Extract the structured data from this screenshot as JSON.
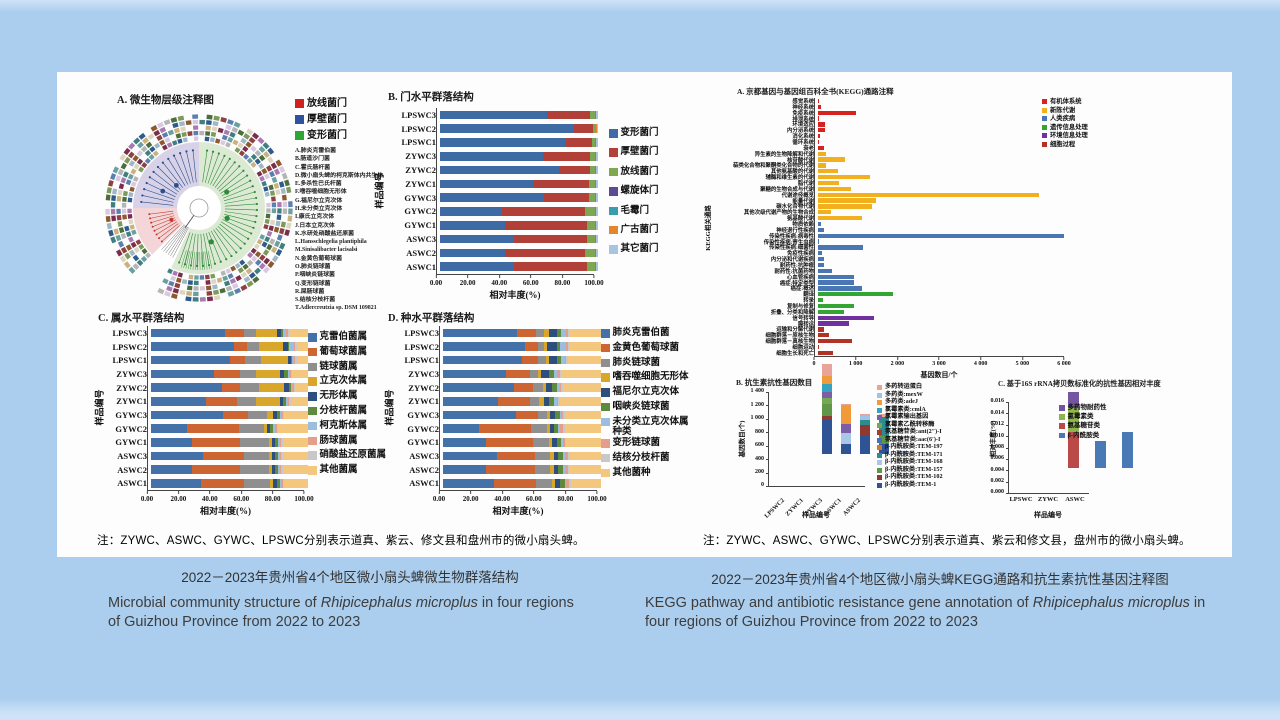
{
  "left_figure": {
    "panel_a": {
      "title": "A. 微生物层级注释图",
      "legend": [
        {
          "label": "放线菌门",
          "color": "#d02020"
        },
        {
          "label": "厚壁菌门",
          "color": "#2f52a0"
        },
        {
          "label": "变形菌门",
          "color": "#2fa538"
        }
      ],
      "species_list": [
        "A.肺炎克雷伯菌",
        "B.肠道沙门菌",
        "C.霍氏肠杆菌",
        "D.微小扇头蜱的柯克斯体内共生体",
        "E.多杀性巴氏杆菌",
        "F.嗜吞噬细胞无形体",
        "G.福尼尔立克次体",
        "H.未分类立克次体",
        "I.康氏立克次体",
        "J.日本立克次体",
        "K.水研处硝酸盐还原菌",
        "L.Hansschlegelia plantiphila",
        "M.Sinisalibacter lacisalsi",
        "N.金黄色葡萄球菌",
        "O.肺炎链球菌",
        "P.咽峡炎链球菌",
        "Q.变形链球菌",
        "R.屎肠球菌",
        "S.结核分枝杆菌",
        "T.Adlercreutzia sp. DSM 109821"
      ],
      "ring_palette": [
        "#3f7f7f",
        "#7a2e4e",
        "#c9b27b",
        "#5b7fae",
        "#7d9a5a",
        "#b5b5b5",
        "#8c5a2e",
        "#2e5a8c",
        "#a87ab0",
        "#dcd6c0",
        "#6aa0a0",
        "#8f4040",
        "#4a6f3a",
        "#d9c9e0",
        "#9fb8c8"
      ],
      "sector_colors": {
        "proteo": "#dcead3",
        "firmi": "#d8d2e8",
        "actino": "#f4d6d8"
      }
    },
    "note": "注：ZYWC、ASWC、GYWC、LPSWC分别表示道真、紫云、修文县和盘州市的微小扇头蜱。",
    "caption_zh": "2022－2023年贵州省4个地区微小扇头蜱微生物群落结构",
    "caption_en": {
      "prefix": "Microbial community structure of ",
      "italic": "Rhipicephalus microplus",
      "suffix": " in four regions of Guizhou Province from 2022 to 2023"
    }
  },
  "right_figure": {
    "note": "注：ZYWC、ASWC、GYWC、LPSWC分别表示道真、紫云和修文县，盘州市的微小扇头蜱。",
    "caption_zh": "2022－2023年贵州省4个地区微小扇头蜱KEGG通路和抗生素抗性基因注释图",
    "caption_en": {
      "prefix": "KEGG pathway and antibiotic resistance gene annotation of ",
      "italic": "Rhipicephalus microplus",
      "suffix": " in four regions of Guizhou Province from 2022 to 2023"
    }
  },
  "chart_data": [
    {
      "id": "phylum",
      "type": "bar",
      "orientation": "horizontal",
      "stacked": true,
      "title": "B. 门水平群落结构",
      "ylabel": "样品编号",
      "xlabel": "相对丰度(%)",
      "xlim": [
        0,
        100
      ],
      "xticks": [
        "0.00",
        "20.00",
        "40.00",
        "60.00",
        "80.00",
        "100.00"
      ],
      "categories": [
        "LPSWC3",
        "LPSWC2",
        "LPSWC1",
        "ZYWC3",
        "ZYWC2",
        "ZYWC1",
        "GYWC3",
        "GYWC2",
        "GYWC1",
        "ASWC3",
        "ASWC2",
        "ASWC1"
      ],
      "series": [
        {
          "name": "变形菌门",
          "color": "#3f6ba5",
          "values": [
            68,
            85,
            80,
            65,
            75,
            59,
            66,
            39,
            41,
            47,
            41,
            47
          ]
        },
        {
          "name": "厚壁菌门",
          "color": "#b04038",
          "values": [
            27,
            12,
            16,
            30,
            20,
            35,
            28,
            53,
            52,
            46,
            51,
            46
          ]
        },
        {
          "name": "放线菌门",
          "color": "#7fa651",
          "values": [
            3,
            1.5,
            2,
            3,
            3,
            4,
            4,
            6,
            5,
            5,
            6,
            5
          ]
        },
        {
          "name": "螺旋体门",
          "color": "#5c4a92",
          "values": [
            0.4,
            0.3,
            0.4,
            0.4,
            0.4,
            0.4,
            0.4,
            0.4,
            0.4,
            0.4,
            0.4,
            0.4
          ]
        },
        {
          "name": "毛霉门",
          "color": "#3a9daf",
          "values": [
            0.3,
            0.2,
            0.3,
            0.3,
            0.3,
            0.3,
            0.3,
            0.3,
            0.3,
            0.3,
            0.3,
            0.3
          ]
        },
        {
          "name": "广古菌门",
          "color": "#e1872f",
          "values": [
            0.3,
            0.2,
            0.3,
            0.3,
            0.3,
            0.3,
            0.3,
            0.3,
            0.3,
            0.3,
            0.3,
            0.3
          ]
        },
        {
          "name": "其它菌门",
          "color": "#a9c3e2",
          "values": [
            1,
            0.8,
            1,
            1,
            1,
            1,
            1,
            1,
            1,
            1,
            1,
            1
          ]
        }
      ]
    },
    {
      "id": "genus",
      "type": "bar",
      "orientation": "horizontal",
      "stacked": true,
      "title": "C. 属水平群落结构",
      "ylabel": "样品编号",
      "xlabel": "相对丰度(%)",
      "xlim": [
        0,
        100
      ],
      "xticks": [
        "0.00",
        "20.00",
        "40.00",
        "60.00",
        "80.00",
        "100.00"
      ],
      "categories": [
        "LPSWC3",
        "LPSWC2",
        "LPSWC1",
        "ZYWC3",
        "ZYWC2",
        "ZYWC1",
        "GYWC3",
        "GYWC2",
        "GYWC1",
        "ASWC3",
        "ASWC2",
        "ASWC1"
      ],
      "series": [
        {
          "name": "克雷伯菌属",
          "color": "#4472a8",
          "values": [
            47,
            53,
            50,
            40,
            45,
            35,
            46,
            23,
            26,
            33,
            26,
            32
          ]
        },
        {
          "name": "葡萄球菌属",
          "color": "#cc6532",
          "values": [
            12,
            8,
            10,
            17,
            12,
            20,
            16,
            33,
            31,
            26,
            31,
            27
          ]
        },
        {
          "name": "链球菌属",
          "color": "#8f8f8f",
          "values": [
            8,
            8,
            10,
            10,
            12,
            12,
            12,
            16,
            18,
            16,
            18,
            17
          ]
        },
        {
          "name": "立克次体属",
          "color": "#d9a62c",
          "values": [
            13,
            15,
            17,
            15,
            16,
            15,
            4,
            2,
            2,
            2,
            2,
            2
          ]
        },
        {
          "name": "无形体属",
          "color": "#2e4f7e",
          "values": [
            3,
            3,
            2,
            3,
            3,
            2,
            2,
            2,
            2,
            2,
            2,
            2
          ]
        },
        {
          "name": "分枝杆菌属",
          "color": "#5d8a3c",
          "values": [
            1,
            1,
            1,
            2,
            1,
            2,
            2,
            2,
            2,
            2,
            2,
            2
          ]
        },
        {
          "name": "柯克斯体属",
          "color": "#9cbede",
          "values": [
            2,
            3,
            1,
            1,
            1,
            1,
            1,
            1,
            1,
            1,
            1,
            1
          ]
        },
        {
          "name": "肠球菌属",
          "color": "#e59d8c",
          "values": [
            1,
            1,
            1,
            1,
            1,
            1,
            1,
            1,
            1,
            1,
            1,
            1
          ]
        },
        {
          "name": "硝酸盐还原菌属",
          "color": "#c8c8c8",
          "values": [
            1,
            1,
            1,
            1,
            1,
            1,
            1,
            1,
            1,
            1,
            1,
            1
          ]
        },
        {
          "name": "其他菌属",
          "color": "#f4c77e",
          "values": [
            12,
            7,
            7,
            10,
            8,
            11,
            15,
            19,
            16,
            16,
            16,
            15
          ]
        }
      ]
    },
    {
      "id": "species",
      "type": "bar",
      "orientation": "horizontal",
      "stacked": true,
      "title": "D. 种水平群落结构",
      "ylabel": "样品编号",
      "xlabel": "相对丰度(%)",
      "xlim": [
        0,
        100
      ],
      "xticks": [
        "0.00",
        "20.00",
        "40.00",
        "60.00",
        "80.00",
        "100.00"
      ],
      "categories": [
        "LPSWC3",
        "LPSWC2",
        "LPSWC1",
        "ZYWC3",
        "ZYWC2",
        "ZYWC1",
        "GYWC3",
        "GYWC2",
        "GYWC1",
        "ASWC3",
        "ASWC2",
        "ASWC1"
      ],
      "series": [
        {
          "name": "肺炎克雷伯菌",
          "color": "#4472a8",
          "values": [
            47,
            52,
            50,
            40,
            45,
            35,
            46,
            23,
            27,
            34,
            27,
            32
          ]
        },
        {
          "name": "金黄色葡萄球菌",
          "color": "#cc6532",
          "values": [
            12,
            8,
            10,
            15,
            12,
            20,
            14,
            33,
            30,
            24,
            31,
            27
          ]
        },
        {
          "name": "肺炎链球菌",
          "color": "#8f8f8f",
          "values": [
            5,
            4,
            5,
            5,
            6,
            6,
            6,
            10,
            10,
            10,
            10,
            10
          ]
        },
        {
          "name": "嗜吞噬细胞无形体",
          "color": "#d9a62c",
          "values": [
            3,
            2,
            2,
            2,
            2,
            3,
            2,
            2,
            2,
            2,
            2,
            2
          ]
        },
        {
          "name": "福尼尔立克次体",
          "color": "#2e4f7e",
          "values": [
            5,
            6,
            5,
            5,
            4,
            3,
            3,
            2,
            3,
            3,
            3,
            3
          ]
        },
        {
          "name": "咽峡炎链球菌",
          "color": "#5d8a3c",
          "values": [
            3,
            2,
            3,
            3,
            3,
            3,
            3,
            3,
            3,
            3,
            3,
            3
          ]
        },
        {
          "name": "未分类立克次体属种类",
          "color": "#9cbede",
          "values": [
            3,
            4,
            2,
            2,
            2,
            2,
            1,
            1,
            1,
            1,
            1,
            1
          ]
        },
        {
          "name": "变形链球菌",
          "color": "#e59d8c",
          "values": [
            1,
            1,
            1,
            2,
            1,
            1,
            1,
            2,
            1,
            2,
            2,
            2
          ]
        },
        {
          "name": "结核分枝杆菌",
          "color": "#c8c8c8",
          "values": [
            1,
            1,
            1,
            1,
            1,
            1,
            1,
            1,
            1,
            1,
            1,
            1
          ]
        },
        {
          "name": "其他菌种",
          "color": "#f4c77e",
          "values": [
            20,
            20,
            21,
            25,
            24,
            26,
            23,
            23,
            22,
            20,
            20,
            19
          ]
        }
      ]
    },
    {
      "id": "kegg",
      "type": "bar",
      "orientation": "horizontal",
      "title": "A. 京都基因与基因组百科全书(KEGG)通路注释",
      "ylabel": "KEGG相关通路",
      "xlabel": "基因数目/个",
      "xlim": [
        0,
        6000
      ],
      "xticks": [
        "0",
        "1 000",
        "2 000",
        "3 000",
        "4 000",
        "5 000",
        "6 000"
      ],
      "groups": [
        {
          "label": "有机体系统",
          "color": "#d62320"
        },
        {
          "label": "新陈代谢",
          "color": "#f2b01e"
        },
        {
          "label": "人类疾病",
          "color": "#4a76b3"
        },
        {
          "label": "遗传信息处理",
          "color": "#33a532"
        },
        {
          "label": "环境信息处理",
          "color": "#7030a0"
        },
        {
          "label": "细胞过程",
          "color": "#b23325"
        }
      ],
      "rows": [
        [
          "感觉系统",
          30,
          0
        ],
        [
          "神经系统",
          60,
          0
        ],
        [
          "免疫系统",
          920,
          0
        ],
        [
          "排泄系统",
          25,
          0
        ],
        [
          "环境适应",
          160,
          0
        ],
        [
          "内分泌系统",
          170,
          0
        ],
        [
          "消化系统",
          45,
          0
        ],
        [
          "循环系统",
          25,
          0
        ],
        [
          "衰老",
          150,
          0
        ],
        [
          "异生素的生物降解和代谢",
          190,
          1
        ],
        [
          "核苷酸代谢",
          640,
          1
        ],
        [
          "萜类化合物和聚酮类化合物的代谢",
          200,
          1
        ],
        [
          "其他氨基酸的代谢",
          480,
          1
        ],
        [
          "辅酶和维生素的代谢",
          1250,
          1
        ],
        [
          "脂代谢",
          500,
          1
        ],
        [
          "聚糖的生物合成与代谢",
          800,
          1
        ],
        [
          "代谢途径概览",
          5300,
          1
        ],
        [
          "能量代谢",
          1380,
          1
        ],
        [
          "碳水化合物代谢",
          1290,
          1
        ],
        [
          "其他次级代谢产物的生物合成",
          310,
          1
        ],
        [
          "氨基酸代谢",
          1060,
          1
        ],
        [
          "物质依赖",
          60,
          2
        ],
        [
          "神经退行性疾病",
          150,
          2
        ],
        [
          "传染性疾病:病毒性",
          5900,
          2
        ],
        [
          "传染性疾病:寄生虫病",
          35,
          2
        ],
        [
          "传染性疾病:细菌性",
          1090,
          2
        ],
        [
          "免疫性疾病",
          90,
          2
        ],
        [
          "内分泌和代谢疾病",
          140,
          2
        ],
        [
          "耐药性:抗肿瘤",
          140,
          2
        ],
        [
          "耐药性:抗菌药物",
          340,
          2
        ],
        [
          "心血管疾病",
          870,
          2
        ],
        [
          "癌症:特定类型",
          870,
          2
        ],
        [
          "癌症:概述",
          1060,
          2
        ],
        [
          "翻译",
          1800,
          3
        ],
        [
          "转录",
          120,
          3
        ],
        [
          "复制与修复",
          860,
          3
        ],
        [
          "折叠、分类和降解",
          620,
          3
        ],
        [
          "信号转导",
          1350,
          4
        ],
        [
          "膜转运",
          740,
          4
        ],
        [
          "运输和分解代谢",
          150,
          5
        ],
        [
          "细胞群落－原核生物",
          260,
          5
        ],
        [
          "细胞群落－真核生物",
          820,
          5
        ],
        [
          "细胞运动",
          25,
          5
        ],
        [
          "细胞生长和死亡",
          350,
          5
        ]
      ]
    },
    {
      "id": "arg_counts",
      "type": "bar",
      "orientation": "vertical",
      "stacked": true,
      "title": "B. 抗生素抗性基因数目",
      "ylabel": "基因数目(个)",
      "xlabel": "样品编号",
      "ylim": [
        0,
        1400
      ],
      "yticks": [
        "1 400",
        "1 200",
        "1 000",
        "800",
        "600",
        "400",
        "200",
        "0"
      ],
      "samples": [
        "LPSWC2",
        "ZYWC1",
        "ZYWC3",
        "ASWC1",
        "ASWC2"
      ],
      "legend": [
        {
          "label": "多药转运蛋白",
          "color": "#e8a39b"
        },
        {
          "label": "多药类:mexW",
          "color": "#9dc3e6"
        },
        {
          "label": "多药类:adeJ",
          "color": "#f09a38"
        },
        {
          "label": "氯霉素类:cmlA",
          "color": "#35a2bf"
        },
        {
          "label": "氯霉素输出基因",
          "color": "#7b5ea7"
        },
        {
          "label": "氯霉素乙酰转移酶",
          "color": "#74a851"
        },
        {
          "label": "氨基糖苷类:ant(2″)-I",
          "color": "#a93b2e"
        },
        {
          "label": "氨基糖苷类:aac(6′)-I",
          "color": "#4472b8"
        },
        {
          "label": "β-内酰胺类:TEM-197",
          "color": "#d07b28"
        },
        {
          "label": "β-内酰胺类:TEM-171",
          "color": "#2e8b8f"
        },
        {
          "label": "β-内酰胺类:TEM-168",
          "color": "#aac7e8"
        },
        {
          "label": "β-内酰胺类:TEM-157",
          "color": "#5f9648"
        },
        {
          "label": "β-内酰胺类:TEM-102",
          "color": "#8f3a31"
        },
        {
          "label": "β-内酰胺类:TEM-1",
          "color": "#2f5496"
        }
      ],
      "values": [
        [
          180,
          0,
          120,
          110,
          90,
          90,
          0,
          0,
          0,
          0,
          0,
          190,
          60,
          500
        ],
        [
          10,
          0,
          290,
          0,
          130,
          0,
          0,
          0,
          0,
          0,
          160,
          0,
          0,
          150
        ],
        [
          20,
          60,
          0,
          0,
          0,
          0,
          0,
          0,
          0,
          80,
          0,
          0,
          150,
          280
        ],
        [
          50,
          0,
          0,
          0,
          0,
          0,
          0,
          0,
          0,
          280,
          0,
          120,
          0,
          150
        ],
        [
          0,
          40,
          0,
          0,
          0,
          0,
          0,
          0,
          0,
          0,
          0,
          0,
          0,
          0
        ]
      ]
    },
    {
      "id": "arg_abundance",
      "type": "bar",
      "orientation": "vertical",
      "stacked": true,
      "title": "C. 基于16S rRNA拷贝数标准化的抗性基因相对丰度",
      "ylabel": "相对丰度(%)",
      "xlabel": "样品编号",
      "ylim": [
        0,
        0.016
      ],
      "yticks": [
        "0.016",
        "0.014",
        "0.012",
        "0.010",
        "0.008",
        "0.006",
        "0.004",
        "0.002",
        "0.000"
      ],
      "samples": [
        "LPSWC",
        "ZYWC",
        "ASWC"
      ],
      "legend": [
        {
          "label": "多药物耐药性",
          "color": "#7456a0"
        },
        {
          "label": "氯霉素类",
          "color": "#8db54b"
        },
        {
          "label": "氨基糖苷类",
          "color": "#b94a48"
        },
        {
          "label": "β-内酰胺类",
          "color": "#4a7ab5"
        }
      ],
      "values": [
        [
          0.0029,
          0.0042,
          0.0063,
          0
        ],
        [
          0,
          0,
          0,
          0.0047
        ],
        [
          0,
          0,
          0,
          0.0063
        ]
      ]
    }
  ]
}
